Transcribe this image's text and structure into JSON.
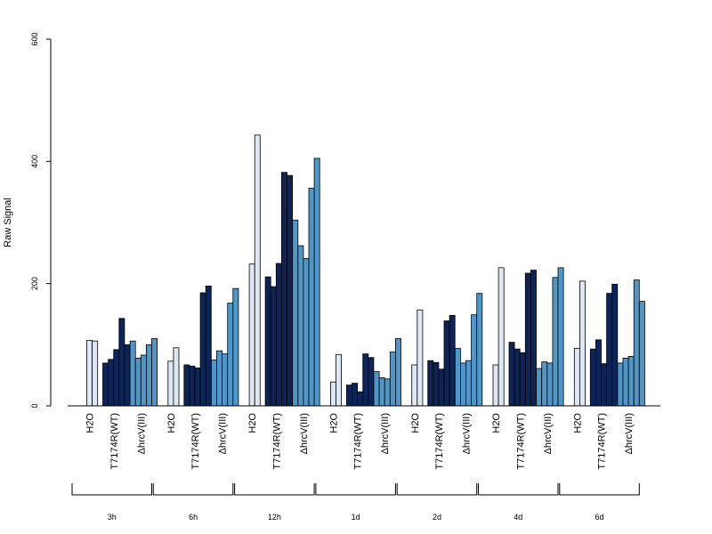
{
  "chart_data": {
    "type": "bar",
    "ylabel": "Raw Signal",
    "ylim": [
      0,
      600
    ],
    "yticks": [
      0,
      200,
      400,
      600
    ],
    "grid": false,
    "colors": {
      "H2O": "#dde8f4",
      "T7174R(WT)": "#0c2456",
      "hrcV": "#4f97c8"
    },
    "categories": [
      "H2O",
      "T7174R(WT)",
      "ΔhrcV(III)"
    ],
    "groups": [
      {
        "time": "3h",
        "H2O": [
          0,
          107,
          106
        ],
        "T7174R(WT)": [
          70,
          76,
          92,
          143,
          100
        ],
        "ΔhrcV(III)": [
          106,
          78,
          83,
          100,
          110
        ]
      },
      {
        "time": "6h",
        "H2O": [
          0,
          73,
          95
        ],
        "T7174R(WT)": [
          67,
          65,
          62,
          185,
          196
        ],
        "ΔhrcV(III)": [
          75,
          90,
          85,
          168,
          192
        ]
      },
      {
        "time": "12h",
        "H2O": [
          0,
          232,
          443
        ],
        "T7174R(WT)": [
          211,
          195,
          233,
          382,
          377
        ],
        "ΔhrcV(III)": [
          304,
          262,
          241,
          356,
          405
        ]
      },
      {
        "time": "1d",
        "H2O": [
          0,
          39,
          84
        ],
        "T7174R(WT)": [
          34,
          37,
          23,
          85,
          79
        ],
        "ΔhrcV(III)": [
          56,
          46,
          44,
          88,
          110
        ]
      },
      {
        "time": "2d",
        "H2O": [
          0,
          67,
          157
        ],
        "T7174R(WT)": [
          74,
          71,
          60,
          139,
          148
        ],
        "ΔhrcV(III)": [
          94,
          70,
          74,
          149,
          184
        ]
      },
      {
        "time": "4d",
        "H2O": [
          0,
          67,
          226
        ],
        "T7174R(WT)": [
          104,
          93,
          87,
          217,
          222
        ],
        "ΔhrcV(III)": [
          61,
          72,
          70,
          210,
          226
        ]
      },
      {
        "time": "6d",
        "H2O": [
          0,
          94,
          204
        ],
        "T7174R(WT)": [
          93,
          108,
          69,
          184,
          199
        ],
        "ΔhrcV(III)": [
          70,
          78,
          81,
          206,
          171
        ]
      }
    ]
  }
}
